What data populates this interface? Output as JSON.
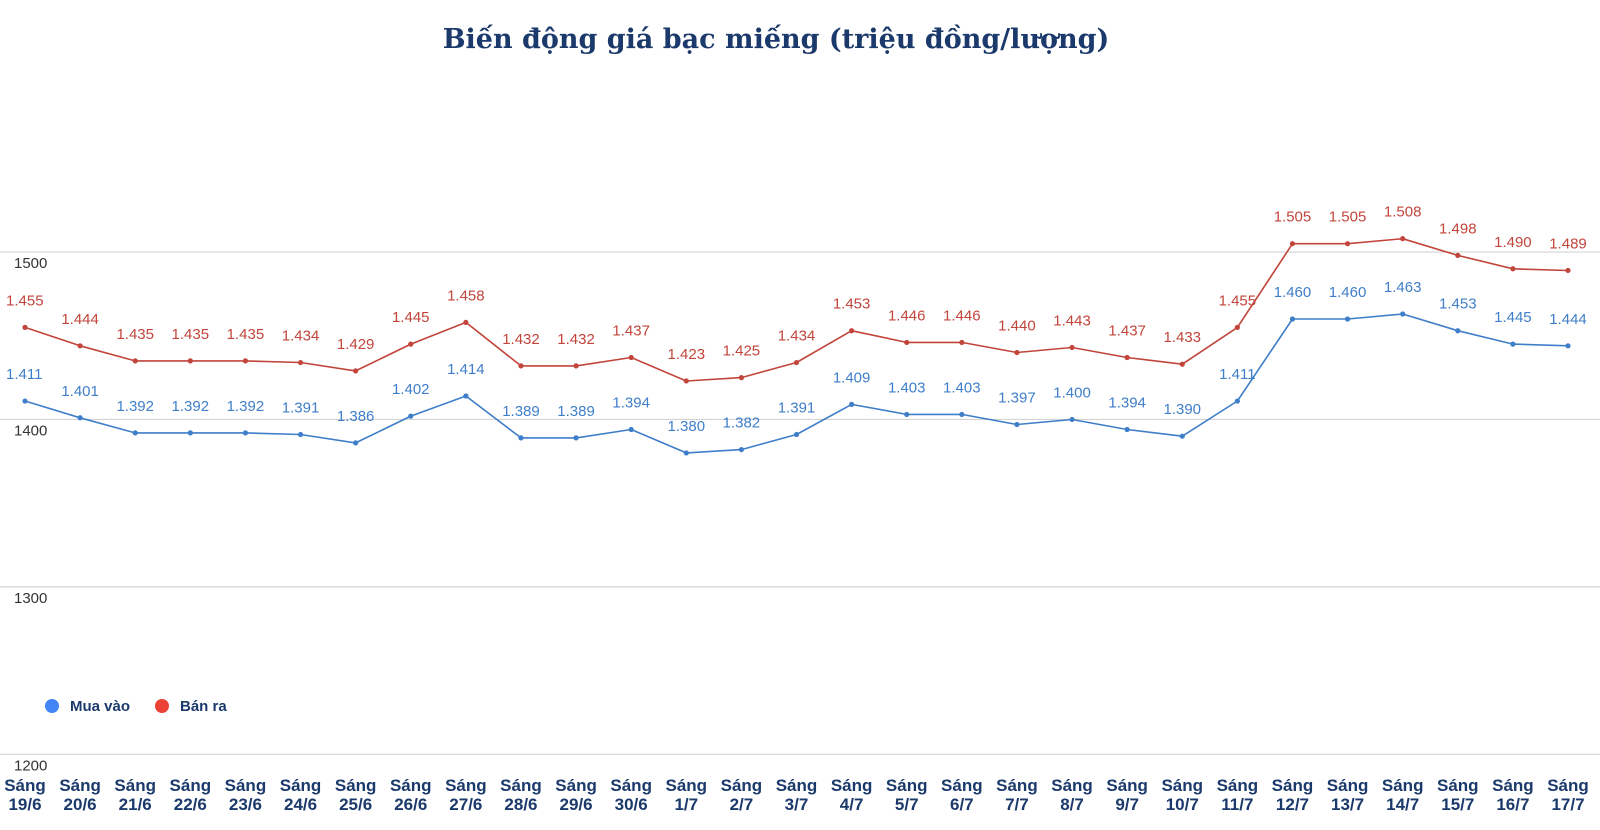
{
  "chart_data": {
    "type": "line",
    "title": "Biến động giá bạc miếng (triệu đồng/lượng)",
    "xlabel": "",
    "ylabel": "",
    "ylim": [
      1150,
      1595
    ],
    "yticks": [
      1200,
      1300,
      1400,
      1500
    ],
    "ytick_labels": [
      "1200",
      "1300",
      "1400",
      "1500"
    ],
    "grid": true,
    "legend_position": "bottom-left",
    "categories": [
      [
        "Sáng",
        "19/6"
      ],
      [
        "Sáng",
        "20/6"
      ],
      [
        "Sáng",
        "21/6"
      ],
      [
        "Sáng",
        "22/6"
      ],
      [
        "Sáng",
        "23/6"
      ],
      [
        "Sáng",
        "24/6"
      ],
      [
        "Sáng",
        "25/6"
      ],
      [
        "Sáng",
        "26/6"
      ],
      [
        "Sáng",
        "27/6"
      ],
      [
        "Sáng",
        "28/6"
      ],
      [
        "Sáng",
        "29/6"
      ],
      [
        "Sáng",
        "30/6"
      ],
      [
        "Sáng",
        "1/7"
      ],
      [
        "Sáng",
        "2/7"
      ],
      [
        "Sáng",
        "3/7"
      ],
      [
        "Sáng",
        "4/7"
      ],
      [
        "Sáng",
        "5/7"
      ],
      [
        "Sáng",
        "6/7"
      ],
      [
        "Sáng",
        "7/7"
      ],
      [
        "Sáng",
        "8/7"
      ],
      [
        "Sáng",
        "9/7"
      ],
      [
        "Sáng",
        "10/7"
      ],
      [
        "Sáng",
        "11/7"
      ],
      [
        "Sáng",
        "12/7"
      ],
      [
        "Sáng",
        "13/7"
      ],
      [
        "Sáng",
        "14/7"
      ],
      [
        "Sáng",
        "15/7"
      ],
      [
        "Sáng",
        "16/7"
      ],
      [
        "Sáng",
        "17/7"
      ]
    ],
    "series": [
      {
        "name": "Mua vào",
        "color": "#3f7ec9",
        "marker_color": "#4285f4",
        "values": [
          1411,
          1401,
          1392,
          1392,
          1392,
          1391,
          1386,
          1402,
          1414,
          1389,
          1389,
          1394,
          1380,
          1382,
          1391,
          1409,
          1403,
          1403,
          1397,
          1400,
          1394,
          1390,
          1411,
          1460,
          1460,
          1463,
          1453,
          1445,
          1444
        ],
        "labels": [
          "1.411",
          "1.401",
          "1.392",
          "1.392",
          "1.392",
          "1.391",
          "1.386",
          "1.402",
          "1.414",
          "1.389",
          "1.389",
          "1.394",
          "1.380",
          "1.382",
          "1.391",
          "1.409",
          "1.403",
          "1.403",
          "1.397",
          "1.400",
          "1.394",
          "1.390",
          "1.411",
          "1.460",
          "1.460",
          "1.463",
          "1.453",
          "1.445",
          "1.444"
        ]
      },
      {
        "name": "Bán ra",
        "color": "#c2453b",
        "marker_color": "#ea4335",
        "values": [
          1455,
          1444,
          1435,
          1435,
          1435,
          1434,
          1429,
          1445,
          1458,
          1432,
          1432,
          1437,
          1423,
          1425,
          1434,
          1453,
          1446,
          1446,
          1440,
          1443,
          1437,
          1433,
          1455,
          1505,
          1505,
          1508,
          1498,
          1490,
          1489
        ],
        "labels": [
          "1.455",
          "1.444",
          "1.435",
          "1.435",
          "1.435",
          "1.434",
          "1.429",
          "1.445",
          "1.458",
          "1.432",
          "1.432",
          "1.437",
          "1.423",
          "1.425",
          "1.434",
          "1.453",
          "1.446",
          "1.446",
          "1.440",
          "1.443",
          "1.437",
          "1.433",
          "1.455",
          "1.505",
          "1.505",
          "1.508",
          "1.498",
          "1.490",
          "1.489"
        ]
      }
    ]
  },
  "colors": {
    "title": "#1b3a6b",
    "grid": "#d4d4d4",
    "axis_text": "#333333",
    "x_labels": "#1b3a6b",
    "legend_text": "#1b3a6b"
  }
}
